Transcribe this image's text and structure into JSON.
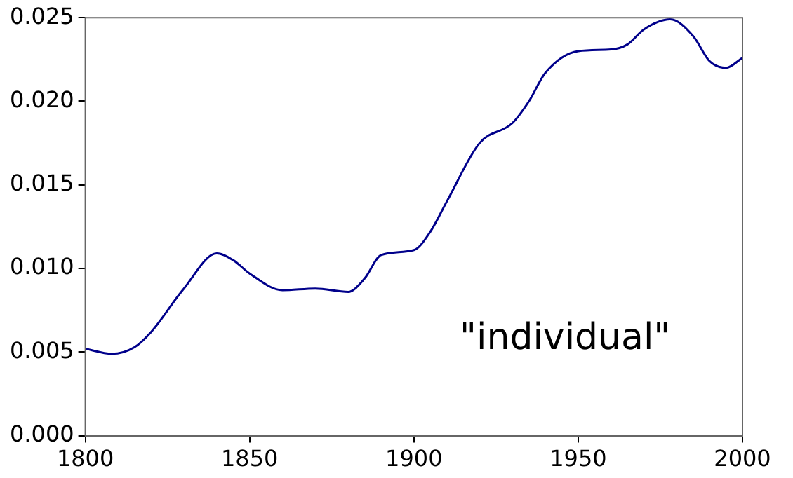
{
  "chart_data": {
    "type": "line",
    "annotations": [
      "\"individual\""
    ],
    "x": [
      1800,
      1808,
      1815,
      1820,
      1830,
      1840,
      1845,
      1850,
      1860,
      1870,
      1880,
      1885,
      1890,
      1900,
      1905,
      1910,
      1920,
      1930,
      1935,
      1940,
      1950,
      1960,
      1965,
      1970,
      1978,
      1985,
      1990,
      1995,
      2000
    ],
    "series": [
      {
        "color": "#00008b",
        "values": [
          0.0052,
          0.0049,
          0.0053,
          0.0062,
          0.0088,
          0.0109,
          0.0105,
          0.0097,
          0.0087,
          0.0088,
          0.0086,
          0.0094,
          0.0108,
          0.0111,
          0.0122,
          0.014,
          0.0175,
          0.0187,
          0.02,
          0.0217,
          0.023,
          0.0231,
          0.0234,
          0.0243,
          0.0249,
          0.0239,
          0.0224,
          0.022,
          0.0226
        ]
      }
    ],
    "xlim": [
      1800,
      2000
    ],
    "xticks": [
      1800,
      1850,
      1900,
      1950,
      2000
    ],
    "ylim": [
      0,
      0.025
    ],
    "yticks": [
      {
        "value": 0,
        "label": "0.000"
      },
      {
        "value": 0.005,
        "label": "0.005"
      },
      {
        "value": 0.01,
        "label": "0.010"
      },
      {
        "value": 0.015,
        "label": "0.015"
      },
      {
        "value": 0.02,
        "label": "0.020"
      },
      {
        "value": 0.025,
        "label": "0.025"
      }
    ],
    "grid": false,
    "legend": false,
    "marker": "none",
    "line_style": "solid"
  }
}
